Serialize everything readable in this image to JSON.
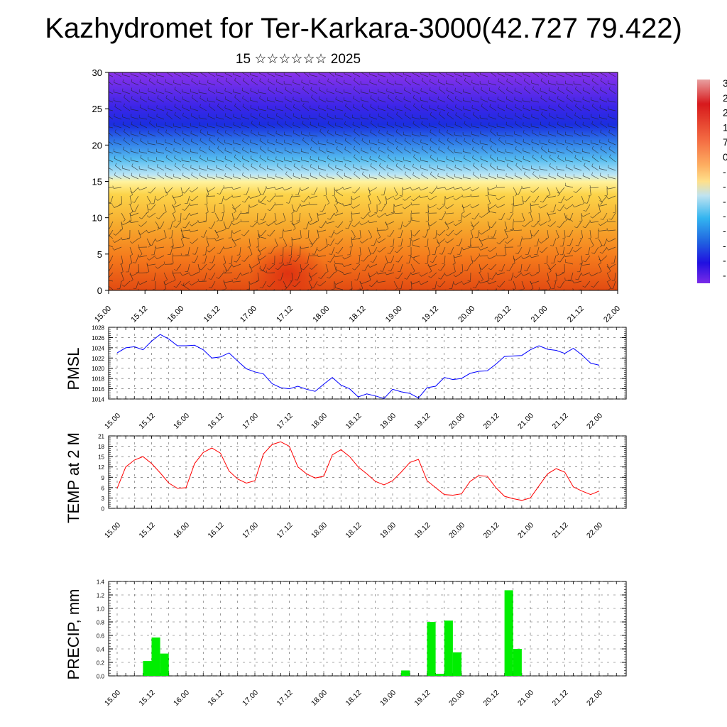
{
  "header": {
    "title": "Kazhydromet for Ter-Karkara-3000(42.727 79.422)",
    "subtitle": "15 ☆☆☆☆☆☆ 2025"
  },
  "chart_data": [
    {
      "type": "heatmap",
      "name": "cross-section",
      "title": "",
      "xlabel": "",
      "ylabel": "",
      "ylim": [
        0,
        30
      ],
      "yticks": [
        0,
        5,
        10,
        15,
        20,
        25,
        30
      ],
      "xticks": [
        "15.00",
        "15.12",
        "16.00",
        "16.12",
        "17.00",
        "17.12",
        "18.00",
        "18.12",
        "19.00",
        "19.12",
        "20.00",
        "20.12",
        "21.00",
        "21.12",
        "22.00"
      ],
      "overlay": "wind barbs",
      "colorbar_labels": [
        "3",
        "2",
        "2",
        "1",
        "7",
        "0",
        "-",
        "-",
        "-",
        "-",
        "-",
        "-",
        "-",
        "-"
      ],
      "colors": [
        "#e8a0a0",
        "#d7191c",
        "#f46d43",
        "#fdae61",
        "#fee08b",
        "#bfe3f0",
        "#33b5f0",
        "#2060e0",
        "#2010e0",
        "#7a2be8"
      ]
    },
    {
      "type": "line",
      "name": "PMSL",
      "ylabel": "PMSL",
      "ylim": [
        1014,
        1028
      ],
      "yticks": [
        1014,
        1016,
        1018,
        1020,
        1022,
        1024,
        1026,
        1028
      ],
      "xticks": [
        "15.00",
        "15.12",
        "16.00",
        "16.12",
        "17.00",
        "17.12",
        "18.00",
        "18.12",
        "19.00",
        "19.12",
        "20.00",
        "20.12",
        "21.00",
        "21.12",
        "22.00"
      ],
      "x_hours_step": 3,
      "color": "#0000ff",
      "values": [
        1023.0,
        1024.0,
        1024.2,
        1023.6,
        1025.3,
        1026.6,
        1025.7,
        1024.4,
        1024.4,
        1024.5,
        1023.6,
        1022.0,
        1022.2,
        1023.0,
        1021.4,
        1019.9,
        1019.3,
        1018.9,
        1017.0,
        1016.2,
        1016.0,
        1016.5,
        1015.9,
        1015.5,
        1016.9,
        1018.2,
        1016.7,
        1016.0,
        1014.4,
        1015.0,
        1014.6,
        1014.1,
        1015.9,
        1015.4,
        1015.1,
        1014.2,
        1016.2,
        1016.5,
        1018.2,
        1017.8,
        1018.0,
        1019.0,
        1019.4,
        1019.5,
        1020.8,
        1022.3,
        1022.4,
        1022.5,
        1023.6,
        1024.4,
        1023.7,
        1023.5,
        1022.9,
        1023.9,
        1022.6,
        1021.0,
        1020.6
      ]
    },
    {
      "type": "line",
      "name": "TEMP at 2 M",
      "ylabel": "TEMP at 2 M",
      "ylim": [
        0,
        21
      ],
      "yticks": [
        0,
        3,
        6,
        9,
        12,
        15,
        18,
        21
      ],
      "xticks": [
        "15.00",
        "15.12",
        "16.00",
        "16.12",
        "17.00",
        "17.12",
        "18.00",
        "18.12",
        "19.00",
        "19.12",
        "20.00",
        "20.12",
        "21.00",
        "21.12",
        "22.00"
      ],
      "x_hours_step": 3,
      "color": "#ff0000",
      "values": [
        5.8,
        12.0,
        14.0,
        15.0,
        13.0,
        10.3,
        7.3,
        5.8,
        6.0,
        13.0,
        16.2,
        17.5,
        16.0,
        10.8,
        8.5,
        7.3,
        8.0,
        15.8,
        18.5,
        19.3,
        18.0,
        12.0,
        10.0,
        8.8,
        9.3,
        15.5,
        17.0,
        15.0,
        12.0,
        10.0,
        7.8,
        6.8,
        8.0,
        10.5,
        13.3,
        14.2,
        8.0,
        6.0,
        4.0,
        3.8,
        4.2,
        7.8,
        9.5,
        9.3,
        6.0,
        3.5,
        2.8,
        2.3,
        3.0,
        6.5,
        10.0,
        11.5,
        10.5,
        6.2,
        5.0,
        4.0,
        5.0
      ]
    },
    {
      "type": "bar",
      "name": "PRECIP, mm",
      "ylabel": "PRECIP, mm",
      "ylim": [
        0,
        1.4
      ],
      "yticks": [
        "0.0",
        "0.2",
        "0.4",
        "0.6",
        "0.8",
        "1.0",
        "1.2",
        "1.4"
      ],
      "xticks": [
        "15.00",
        "15.12",
        "16.00",
        "16.12",
        "17.00",
        "17.12",
        "18.00",
        "18.12",
        "19.00",
        "19.12",
        "20.00",
        "20.12",
        "21.00",
        "21.12",
        "22.00"
      ],
      "x_hours_step": 3,
      "color": "#00ee00",
      "values": [
        0,
        0,
        0,
        0.22,
        0.57,
        0.33,
        0,
        0,
        0,
        0,
        0,
        0,
        0,
        0,
        0,
        0,
        0,
        0,
        0,
        0,
        0,
        0,
        0,
        0,
        0,
        0,
        0,
        0,
        0,
        0,
        0,
        0,
        0,
        0.08,
        0,
        0,
        0.8,
        0.03,
        0.82,
        0.35,
        0,
        0,
        0,
        0,
        0,
        1.27,
        0.4,
        0,
        0,
        0,
        0,
        0,
        0,
        0,
        0,
        0,
        0
      ]
    }
  ]
}
